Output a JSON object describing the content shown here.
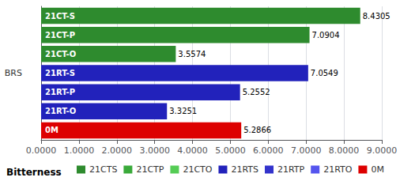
{
  "chart_data": {
    "type": "bar",
    "orientation": "horizontal",
    "categories": [
      "21CT-S",
      "21CT-P",
      "21CT-O",
      "21RT-S",
      "21RT-P",
      "21RT-O",
      "0M"
    ],
    "values": [
      8.4305,
      7.0904,
      3.5574,
      7.0549,
      5.2552,
      3.3251,
      5.2866
    ],
    "value_labels": [
      "8.4305",
      "7.0904",
      "3.5574",
      "7.0549",
      "5.2552",
      "3.3251",
      "5.2866"
    ],
    "data_labels": true,
    "colors": [
      "#2e8b2e",
      "#2e8b2e",
      "#2e8b2e",
      "#2222bb",
      "#2222bb",
      "#2222bb",
      "#dd0000"
    ],
    "ylabel": "BRS",
    "xlabel": "Bitterness",
    "xlim": [
      0,
      9.0
    ],
    "xticks": [
      {
        "value": 0.0,
        "label": "0.0000"
      },
      {
        "value": 1.0,
        "label": "1.0000"
      },
      {
        "value": 2.0,
        "label": "2.0000"
      },
      {
        "value": 3.0,
        "label": "3.0000"
      },
      {
        "value": 4.0,
        "label": "4.0000"
      },
      {
        "value": 5.0,
        "label": "5.0000"
      },
      {
        "value": 6.0,
        "label": "6.0000"
      },
      {
        "value": 7.0,
        "label": "7.0000"
      },
      {
        "value": 8.0,
        "label": "8.0000"
      },
      {
        "value": 9.0,
        "label": "9.0000"
      }
    ],
    "grid": true,
    "legend": "lower left",
    "legend_items": [
      {
        "name": "21CTS",
        "color": "#2e8b2e"
      },
      {
        "name": "21CTP",
        "color": "#3aaa3a"
      },
      {
        "name": "21CTO",
        "color": "#55cc55"
      },
      {
        "name": "21RTS",
        "color": "#2222bb"
      },
      {
        "name": "21RTP",
        "color": "#3333cc"
      },
      {
        "name": "21RTO",
        "color": "#5555ee"
      },
      {
        "name": "0M",
        "color": "#dd0000"
      }
    ]
  }
}
